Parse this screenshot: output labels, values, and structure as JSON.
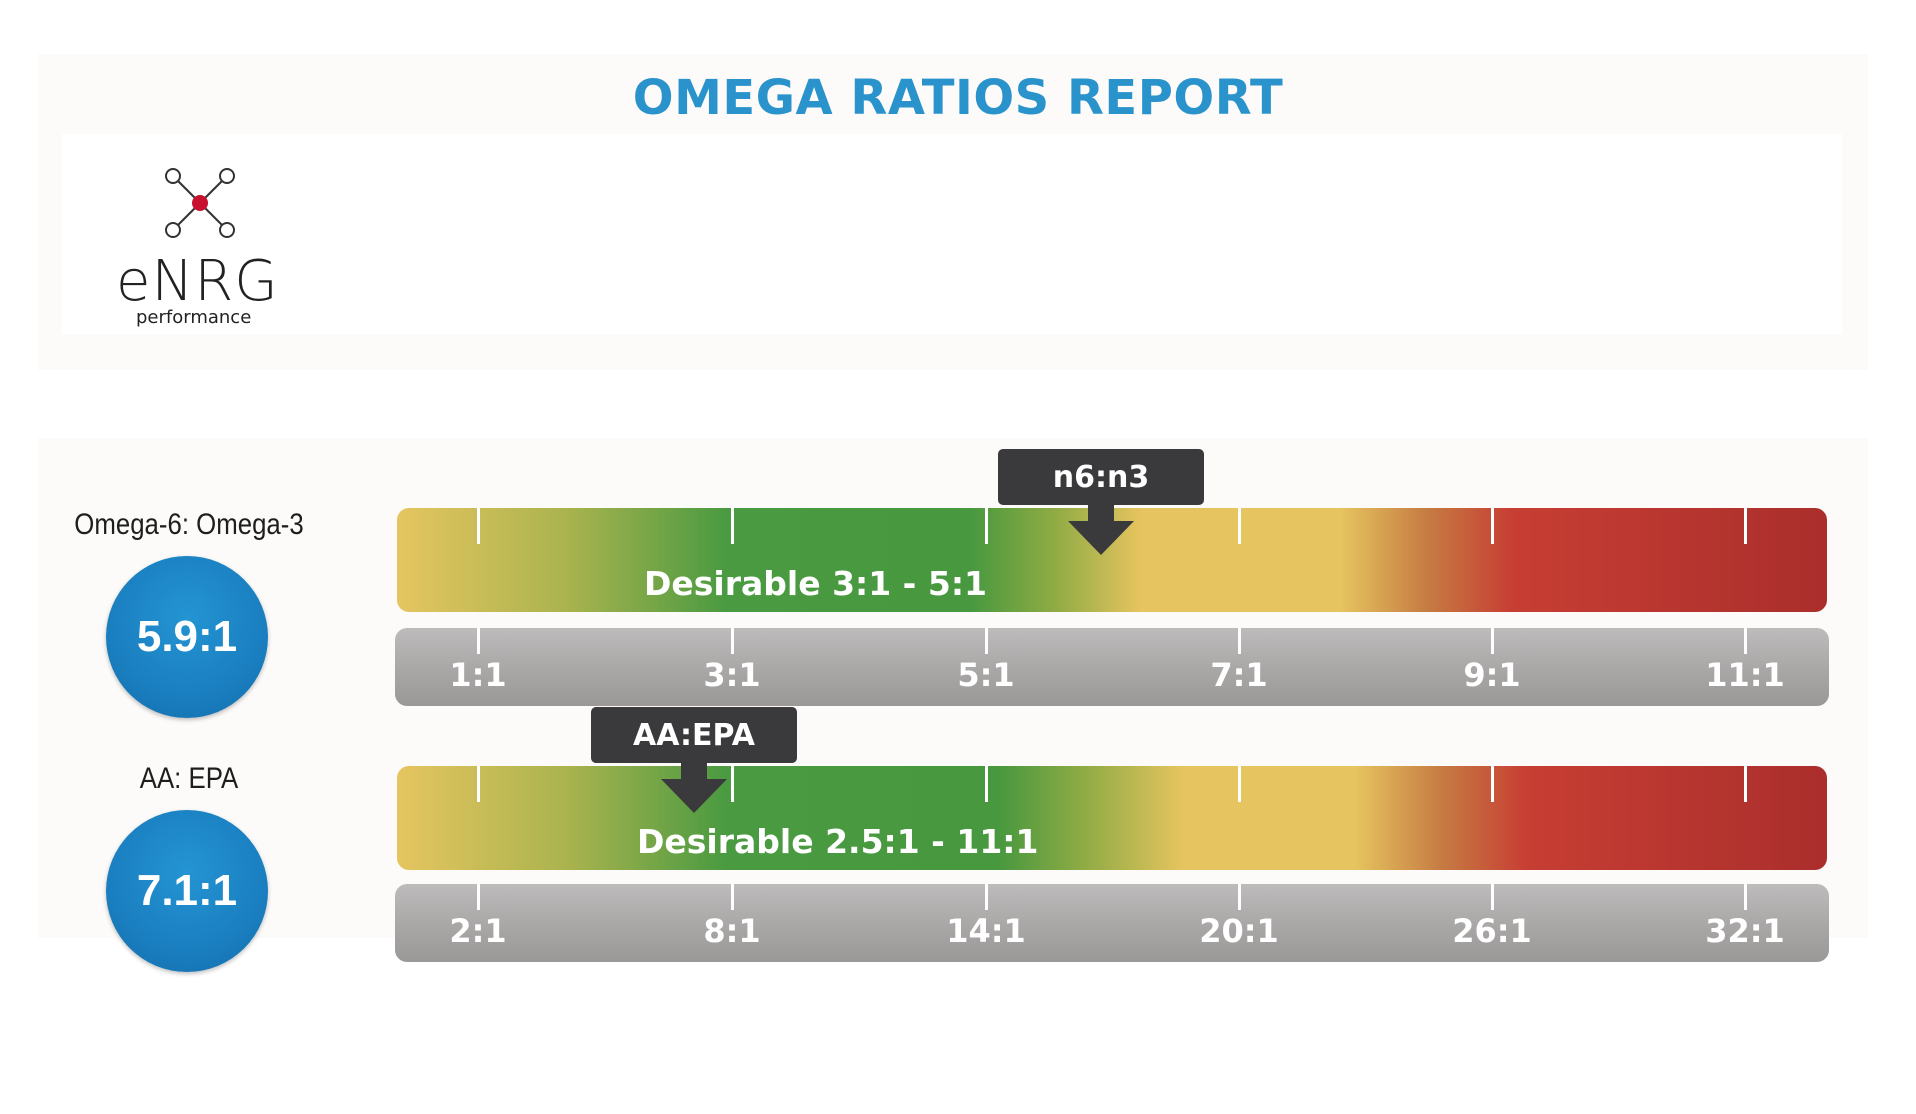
{
  "title": "OMEGA RATIOS REPORT",
  "logo": {
    "wordmark": "eNRG",
    "tagline": "performance"
  },
  "metrics": [
    {
      "label": "Omega-6: Omega-3",
      "value": "5.9:1",
      "marker_label": "n6:n3",
      "desirable": "Desirable 3:1 - 5:1",
      "axis_labels": [
        "1:1",
        "3:1",
        "5:1",
        "7:1",
        "9:1",
        "11:1"
      ]
    },
    {
      "label": "AA: EPA",
      "value": "7.1:1",
      "marker_label": "AA:EPA",
      "desirable": "Desirable 2.5:1 - 11:1",
      "axis_labels": [
        "2:1",
        "8:1",
        "14:1",
        "20:1",
        "26:1",
        "32:1"
      ]
    }
  ],
  "colors": {
    "title": "#2a93cc",
    "circle": "#1a7fc0",
    "marker": "#3a3a3c",
    "green": "#47983f",
    "yellow": "#e6c45f",
    "red": "#aa2e2c",
    "axis": "#a9a6a6"
  }
}
